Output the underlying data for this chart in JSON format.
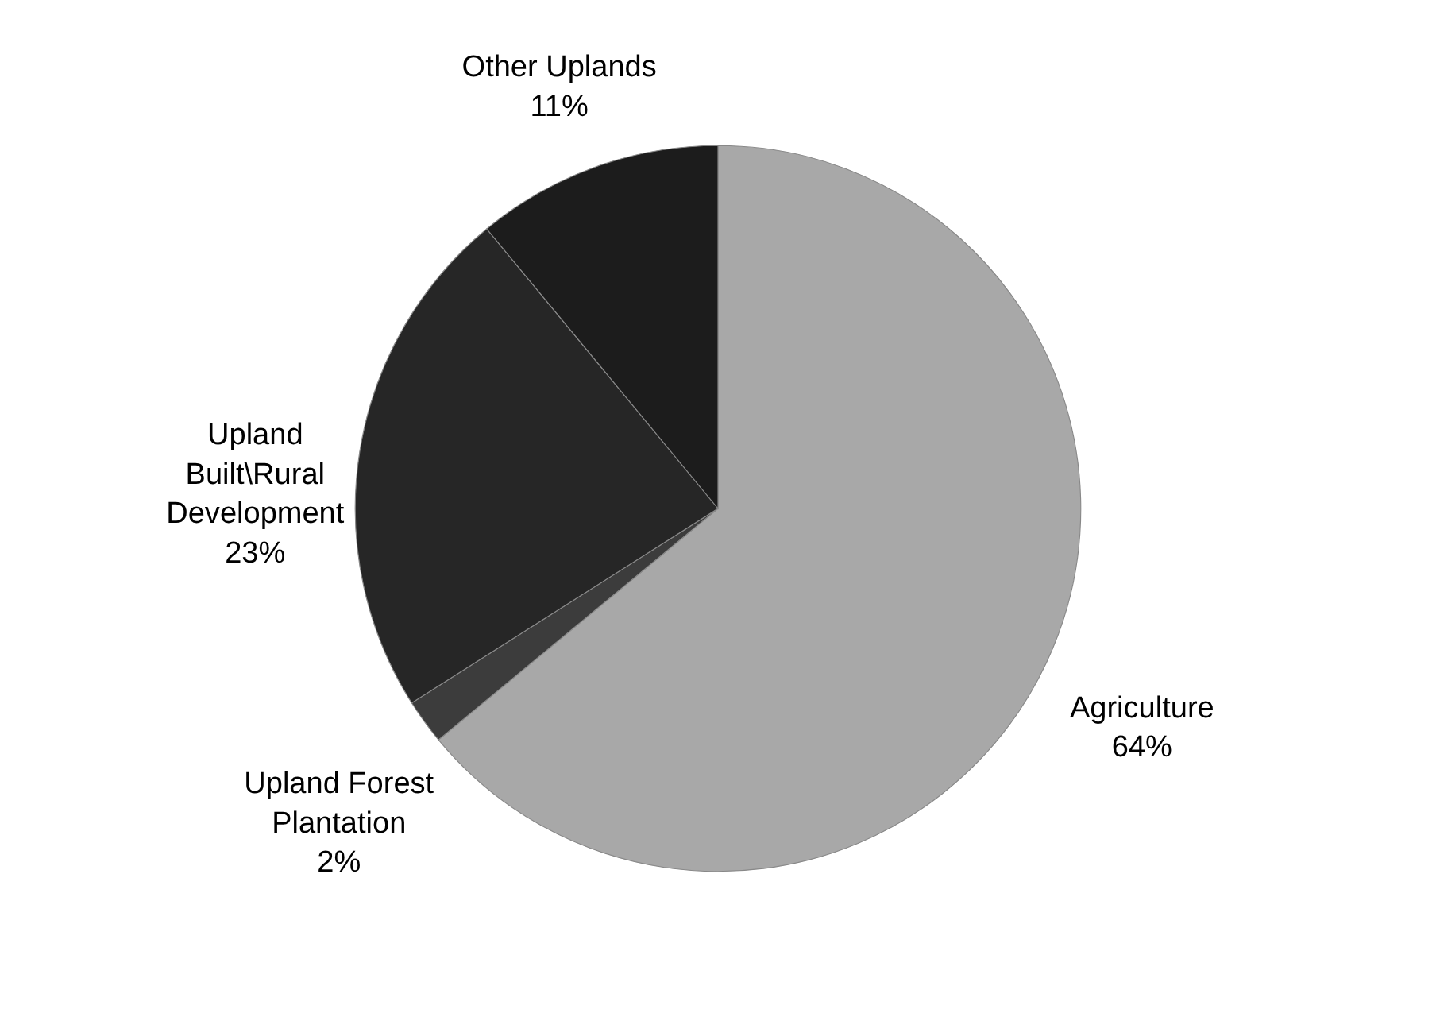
{
  "chart_data": {
    "type": "pie",
    "categories": [
      "Agriculture",
      "Upland Forest Plantation",
      "Upland Built\\Rural Development",
      "Other Uplands"
    ],
    "values": [
      64,
      2,
      23,
      11
    ],
    "value_labels": [
      "64%",
      "2%",
      "23%",
      "11%"
    ],
    "colors": [
      "#a8a8a8",
      "#3c3c3c",
      "#262626",
      "#1c1c1c"
    ]
  }
}
